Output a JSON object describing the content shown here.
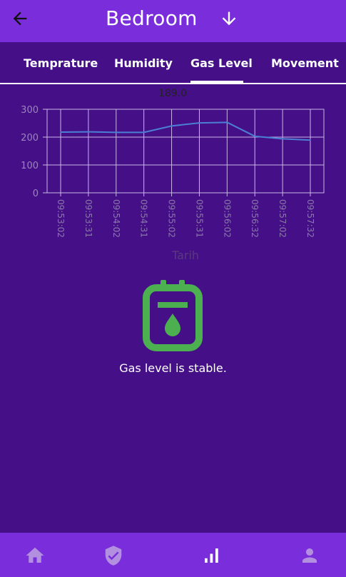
{
  "appbar": {
    "title": "Bedroom",
    "back_icon": "arrow-back-icon",
    "action_icon": "arrow-down-icon"
  },
  "tabs": [
    {
      "label": "Temprature",
      "selected": false
    },
    {
      "label": "Humidity",
      "selected": false
    },
    {
      "label": "Gas Level",
      "selected": true
    },
    {
      "label": "Movement",
      "selected": false
    }
  ],
  "chart_data": {
    "type": "line",
    "title": "189.0",
    "xlabel": "Tarih",
    "ylabel": "",
    "x": [
      "09:53:02",
      "09:53:31",
      "09:54:02",
      "09:54:31",
      "09:55:02",
      "09:55:31",
      "09:56:02",
      "09:56:32",
      "09:57:02",
      "09:57:32"
    ],
    "series": [
      {
        "name": "Gas Level",
        "values": [
          218,
          219,
          217,
          217,
          240,
          251,
          253,
          203,
          194,
          189
        ],
        "color": "#4a7fd4"
      }
    ],
    "yticks": [
      0,
      100,
      200,
      300
    ],
    "ylim": [
      0,
      300
    ],
    "grid": true
  },
  "status": {
    "icon": "gas-canister-icon",
    "icon_color": "#4caf50",
    "message": "Gas level is stable."
  },
  "bottom_nav": [
    {
      "icon": "home-icon",
      "active": false
    },
    {
      "icon": "shield-check-icon",
      "active": false
    },
    {
      "icon": "bar-chart-icon",
      "active": true
    },
    {
      "icon": "person-icon",
      "active": false
    }
  ],
  "colors": {
    "background": "#451087",
    "appbar": "#7a2ddb",
    "inactive_icon": "#b38fe0",
    "active_icon": "#ffffff"
  }
}
